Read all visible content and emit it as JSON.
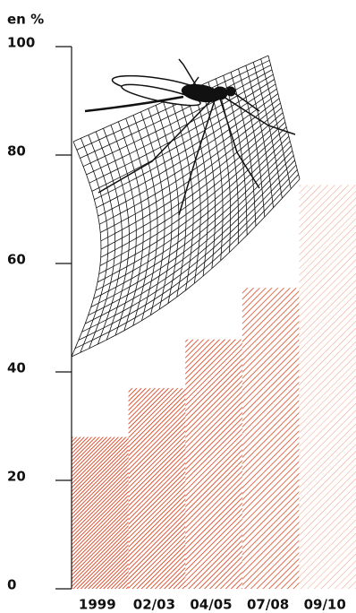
{
  "chart_data": {
    "type": "bar",
    "y_label": "en %",
    "categories": [
      "1999",
      "02/03",
      "04/05",
      "07/08",
      "09/10"
    ],
    "values": [
      28,
      37,
      46,
      55.5,
      74.5
    ],
    "colors": [
      "#d8401c",
      "#da4824",
      "#dc5230",
      "#df5e3e",
      "#ee9a84"
    ],
    "ylim": [
      0,
      100
    ],
    "yticks": [
      0,
      20,
      40,
      60,
      80,
      100
    ]
  }
}
